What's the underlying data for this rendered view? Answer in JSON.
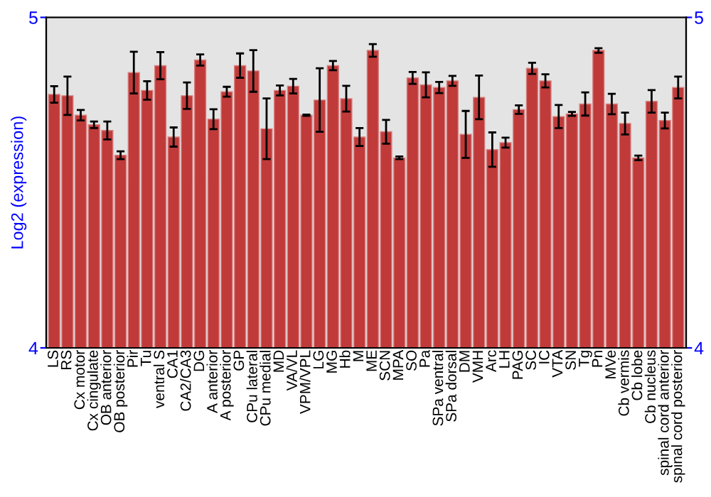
{
  "chart_data": {
    "type": "bar",
    "ylabel": "Log2 (expression)",
    "categories": [
      "LS",
      "RS",
      "Cx motor",
      "Cx cingulate",
      "OB anterior",
      "OB posterior",
      "Pir",
      "Tu",
      "ventral S",
      "CA1",
      "CA2/CA3",
      "DG",
      "A anterior",
      "A posterior",
      "GP",
      "CPu lateral",
      "CPu medial",
      "MD",
      "VA/VL",
      "VPM/VPL",
      "LG",
      "MG",
      "Hb",
      "M",
      "ME",
      "SCN",
      "MPA",
      "SO",
      "Pa",
      "SPa ventral",
      "SPa dorsal",
      "DM",
      "VMH",
      "Arc",
      "LH",
      "PAG",
      "SC",
      "IC",
      "VTA",
      "SN",
      "Tg",
      "Pn",
      "MVe",
      "Cb vermis",
      "Cb lobe",
      "Cb nucleus",
      "spinal cord anterior",
      "spinal cord posterior"
    ],
    "values": [
      4.767,
      4.763,
      4.704,
      4.675,
      4.658,
      4.583,
      4.833,
      4.779,
      4.854,
      4.638,
      4.763,
      4.871,
      4.692,
      4.775,
      4.854,
      4.838,
      4.663,
      4.779,
      4.792,
      4.704,
      4.75,
      4.854,
      4.754,
      4.638,
      4.9,
      4.654,
      4.575,
      4.817,
      4.796,
      4.788,
      4.808,
      4.646,
      4.758,
      4.6,
      4.621,
      4.721,
      4.846,
      4.808,
      4.7,
      4.708,
      4.738,
      4.9,
      4.738,
      4.679,
      4.575,
      4.746,
      4.688,
      4.788
    ],
    "errors": [
      0.025,
      0.058,
      0.016,
      0.01,
      0.027,
      0.012,
      0.063,
      0.028,
      0.041,
      0.029,
      0.04,
      0.017,
      0.03,
      0.015,
      0.037,
      0.063,
      0.092,
      0.015,
      0.022,
      0.002,
      0.096,
      0.014,
      0.039,
      0.027,
      0.019,
      0.036,
      0.004,
      0.018,
      0.038,
      0.017,
      0.015,
      0.071,
      0.066,
      0.052,
      0.015,
      0.013,
      0.017,
      0.02,
      0.035,
      0.006,
      0.035,
      0.007,
      0.031,
      0.033,
      0.007,
      0.034,
      0.024,
      0.033
    ],
    "color": "#c03a3a",
    "ylim": [
      4,
      5
    ],
    "yticks": [
      4,
      5
    ],
    "y2lim": [
      4,
      5
    ],
    "y2ticks": [
      4,
      5
    ],
    "grid": false
  }
}
